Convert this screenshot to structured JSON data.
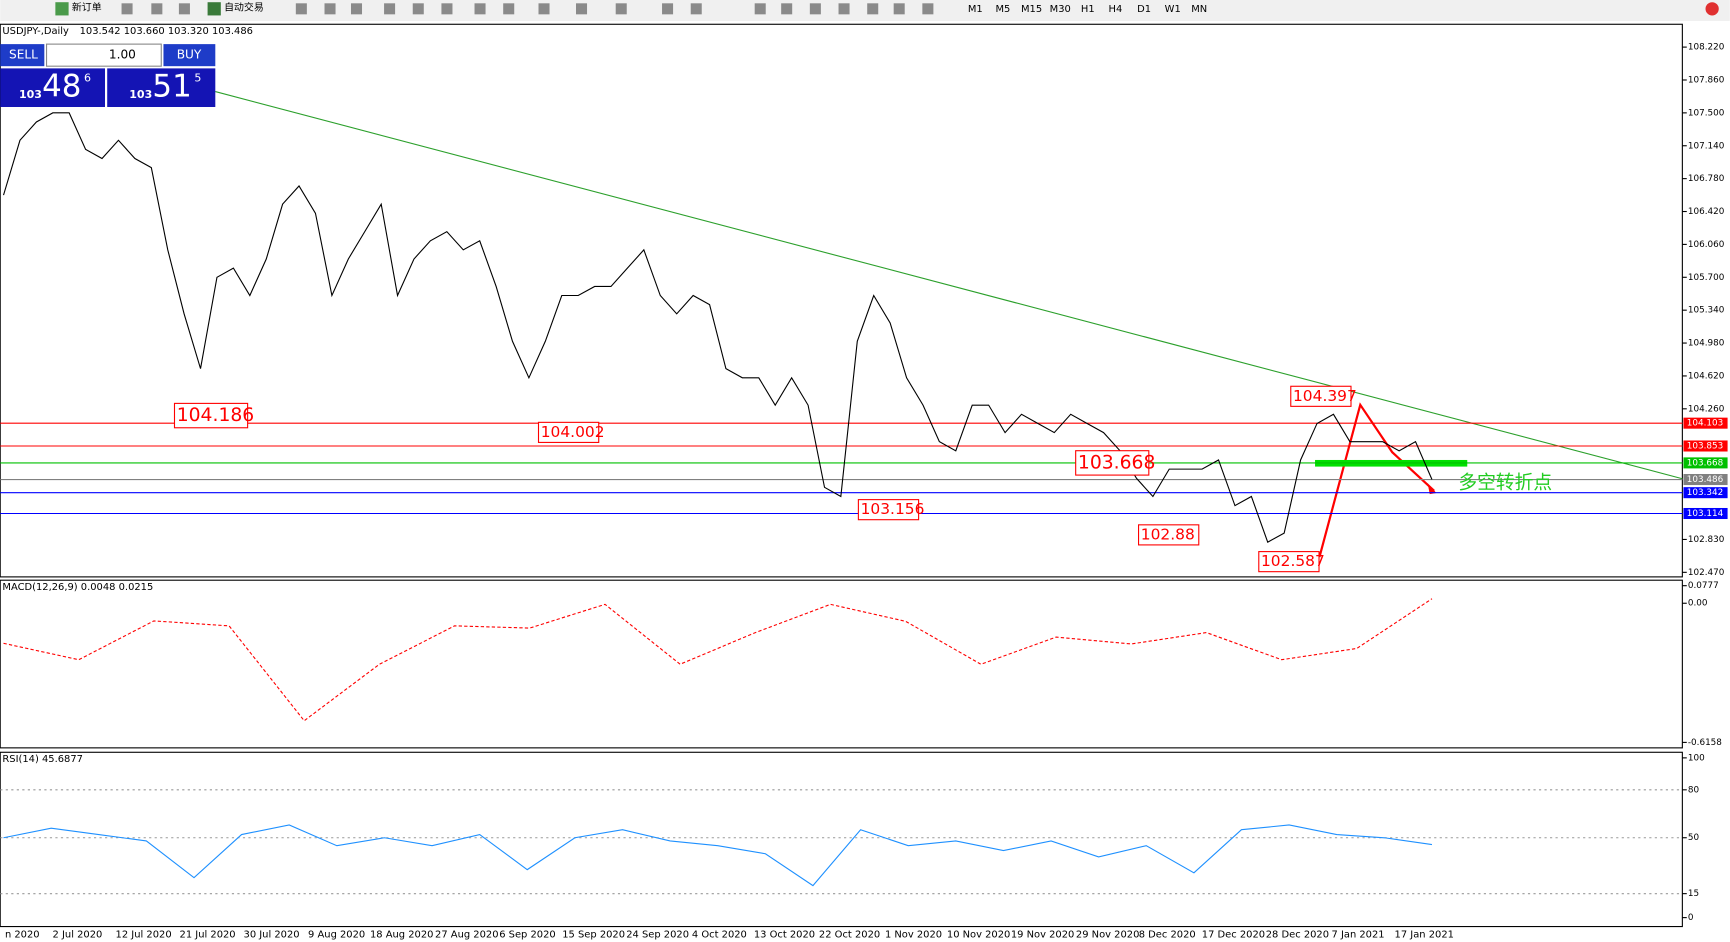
{
  "toolbar": {
    "buttons": [
      "新订单",
      "自动交易"
    ],
    "timeframes": [
      "M1",
      "M5",
      "M15",
      "M30",
      "H1",
      "H4",
      "D1",
      "W1",
      "MN"
    ]
  },
  "trade_panel": {
    "sell": "SELL",
    "buy": "BUY",
    "lot": "1.00",
    "sell_price": {
      "big": "103",
      "main": "48",
      "sup": "6"
    },
    "buy_price": {
      "big": "103",
      "main": "51",
      "sup": "5"
    }
  },
  "x_axis": {
    "labels": [
      "n 2020",
      "2 Jul 2020",
      "12 Jul 2020",
      "21 Jul 2020",
      "30 Jul 2020",
      "9 Aug 2020",
      "18 Aug 2020",
      "27 Aug 2020",
      "6 Sep 2020",
      "15 Sep 2020",
      "24 Sep 2020",
      "4 Oct 2020",
      "13 Oct 2020",
      "22 Oct 2020",
      "1 Nov 2020",
      "10 Nov 2020",
      "19 Nov 2020",
      "29 Nov 2020",
      "8 Dec 2020",
      "17 Dec 2020",
      "28 Dec 2020",
      "7 Jan 2021",
      "17 Jan 2021"
    ]
  },
  "chart_data": [
    {
      "type": "line",
      "title": "USDJPY-,Daily",
      "subtitle": "103.542 103.660 103.320 103.486",
      "color": "#000000",
      "ylim": [
        102.42,
        108.47
      ],
      "yticks": [
        {
          "value": 108.22,
          "label": "108.220"
        },
        {
          "value": 107.86,
          "label": "107.860"
        },
        {
          "value": 107.5,
          "label": "107.500"
        },
        {
          "value": 107.14,
          "label": "107.140"
        },
        {
          "value": 106.78,
          "label": "106.780"
        },
        {
          "value": 106.42,
          "label": "106.420"
        },
        {
          "value": 106.06,
          "label": "106.060"
        },
        {
          "value": 105.7,
          "label": "105.700"
        },
        {
          "value": 105.34,
          "label": "105.340"
        },
        {
          "value": 104.98,
          "label": "104.980"
        },
        {
          "value": 104.62,
          "label": "104.620"
        },
        {
          "value": 104.26,
          "label": "104.260"
        },
        {
          "value": 102.83,
          "label": "102.830"
        },
        {
          "value": 102.47,
          "label": "102.470"
        }
      ],
      "values": [
        106.6,
        107.2,
        107.4,
        107.5,
        107.5,
        107.1,
        107.0,
        107.2,
        107.0,
        106.9,
        106.0,
        105.3,
        104.7,
        105.7,
        105.8,
        105.5,
        105.9,
        106.5,
        106.7,
        106.4,
        105.5,
        105.9,
        106.2,
        106.5,
        105.5,
        105.9,
        106.1,
        106.2,
        106.0,
        106.1,
        105.6,
        105.0,
        104.6,
        105.0,
        105.5,
        105.5,
        105.6,
        105.6,
        105.8,
        106.0,
        105.5,
        105.3,
        105.5,
        105.4,
        104.7,
        104.6,
        104.6,
        104.3,
        104.6,
        104.3,
        103.4,
        103.3,
        105.0,
        105.5,
        105.2,
        104.6,
        104.3,
        103.9,
        103.8,
        104.3,
        104.3,
        104.0,
        104.2,
        104.1,
        104.0,
        104.2,
        104.1,
        104.0,
        103.8,
        103.5,
        103.3,
        103.6,
        103.6,
        103.6,
        103.7,
        103.2,
        103.3,
        102.8,
        102.9,
        103.7,
        104.1,
        104.2,
        103.9,
        103.9,
        103.9,
        103.8,
        103.9,
        103.486
      ],
      "levels": [
        {
          "value": 104.103,
          "color": "#ff0000"
        },
        {
          "value": 103.853,
          "color": "#ff0000"
        },
        {
          "value": 103.668,
          "color": "#00c000"
        },
        {
          "value": 103.486,
          "color": "#808080"
        },
        {
          "value": 103.342,
          "color": "#0000ff"
        },
        {
          "value": 103.114,
          "color": "#0000ff"
        }
      ],
      "annotations": [
        104.186,
        104.002,
        103.668,
        103.156,
        102.88,
        102.587,
        104.397
      ],
      "note": "多空转折点"
    },
    {
      "type": "line",
      "title": "MACD(12,26,9) 0.0048 0.0215",
      "color": "#ff0000",
      "ylim": [
        -0.64,
        0.102
      ],
      "yticks": [
        0.0777,
        {
          "value": 0,
          "label": "0.00"
        },
        -0.6158
      ],
      "values": [
        -0.177,
        -0.25,
        -0.078,
        -0.1,
        -0.52,
        -0.27,
        -0.1,
        -0.11,
        -0.005,
        -0.27,
        -0.13,
        -0.005,
        -0.08,
        -0.27,
        -0.15,
        -0.18,
        -0.13,
        -0.25,
        -0.2,
        0.02
      ]
    },
    {
      "type": "line",
      "title": "RSI(14) 45.6877",
      "color": "#1e90ff",
      "ylim": [
        -5.6,
        103.5
      ],
      "yticks": [
        100,
        80,
        50,
        15,
        0
      ],
      "values": [
        50,
        56,
        52,
        48,
        25,
        52,
        58,
        45,
        50,
        45,
        52,
        30,
        50,
        55,
        48,
        45,
        40,
        20,
        55,
        45,
        48,
        42,
        48,
        38,
        45,
        28,
        55,
        58,
        52,
        50,
        45.6877
      ]
    }
  ]
}
